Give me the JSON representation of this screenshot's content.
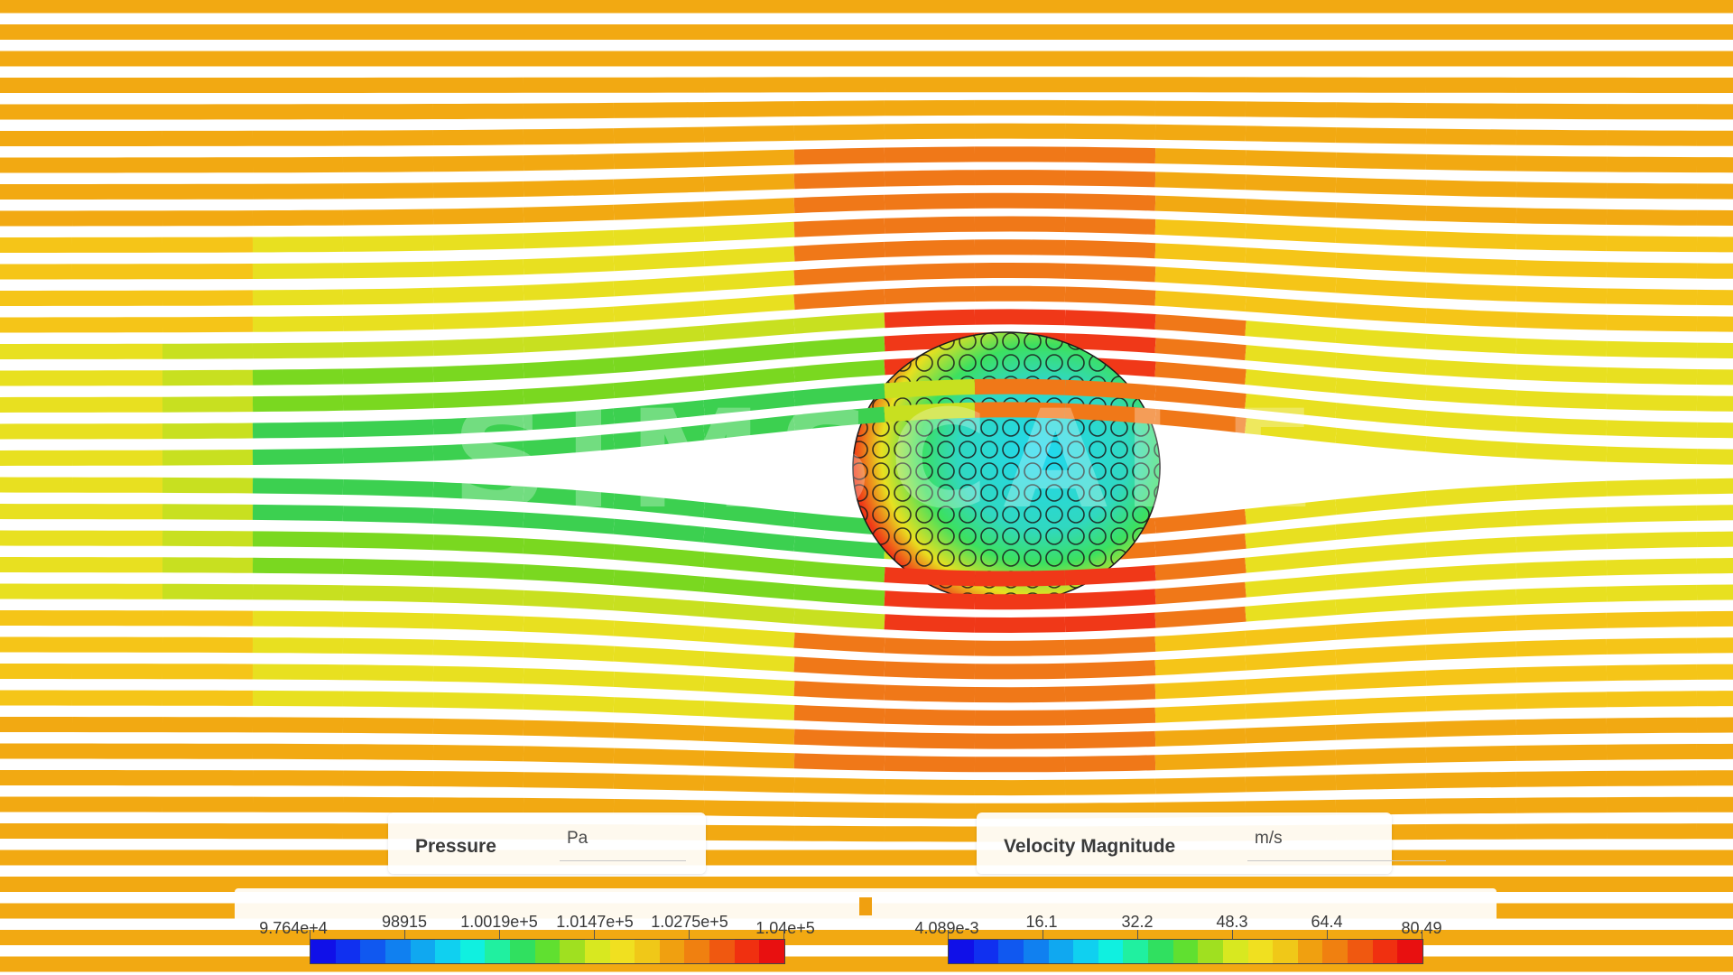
{
  "viewport": {
    "background": "#ffffff",
    "streamline_colors": [
      "#f2a912",
      "#f5c518",
      "#e8e020",
      "#c8e020",
      "#7ad820",
      "#3cd050",
      "#20e0c0",
      "#f07818",
      "#f03818"
    ],
    "object_colors": {
      "cool": "#20d8f0",
      "mid": "#3ce060",
      "warm": "#e8e020",
      "hot": "#f03818"
    }
  },
  "legends": {
    "pressure": {
      "name": "Pressure",
      "unit": "Pa",
      "ticks": [
        "9.764e+4",
        "98915",
        "1.0019e+5",
        "1.0147e+5",
        "1.0275e+5",
        "1.04e+5"
      ]
    },
    "velocity": {
      "name": "Velocity Magnitude",
      "unit": "m/s",
      "ticks": [
        "4.089e-3",
        "16.1",
        "32.2",
        "48.3",
        "64.4",
        "80.49"
      ]
    },
    "colormap": [
      "#1010e8",
      "#1030f0",
      "#1058f0",
      "#1080f0",
      "#10a8f0",
      "#10d0f0",
      "#10f0e0",
      "#20f0a0",
      "#30e060",
      "#60e030",
      "#a0e020",
      "#d8e820",
      "#f0e020",
      "#f0c818",
      "#f0a010",
      "#f08010",
      "#f05810",
      "#f03010",
      "#e81010"
    ]
  }
}
